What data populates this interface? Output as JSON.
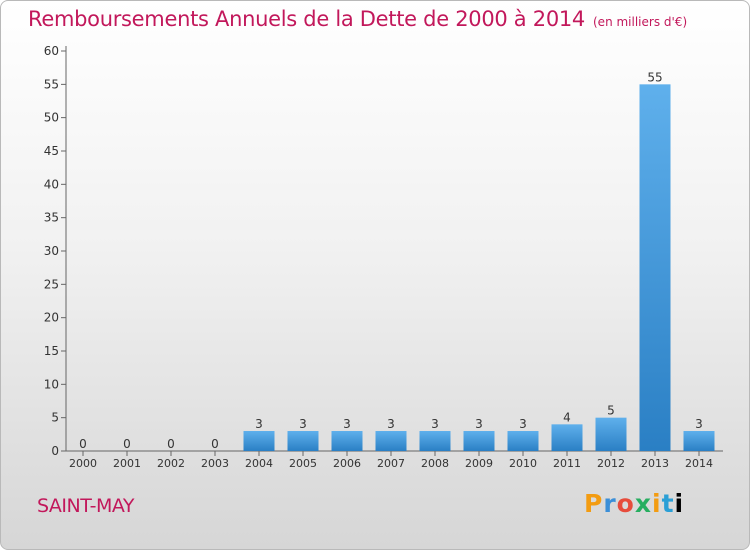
{
  "title": "Remboursements Annuels de la Dette de 2000 à 2014",
  "unit": "(en milliers d'€)",
  "commune": "SAINT-MAY",
  "logo_letters": [
    "P",
    "r",
    "o",
    "x",
    "i",
    "t",
    "i"
  ],
  "chart_data": {
    "type": "bar",
    "categories": [
      "2000",
      "2001",
      "2002",
      "2003",
      "2004",
      "2005",
      "2006",
      "2007",
      "2008",
      "2009",
      "2010",
      "2011",
      "2012",
      "2013",
      "2014"
    ],
    "values": [
      0,
      0,
      0,
      0,
      3,
      3,
      3,
      3,
      3,
      3,
      3,
      4,
      5,
      55,
      3
    ],
    "ylim": [
      0,
      60
    ],
    "yticks": [
      0,
      5,
      10,
      15,
      20,
      25,
      30,
      35,
      40,
      45,
      50,
      55,
      60
    ],
    "grid": false,
    "bar_color": "#3f97dc",
    "text_color": "#333333",
    "title_color": "#c2185b"
  }
}
